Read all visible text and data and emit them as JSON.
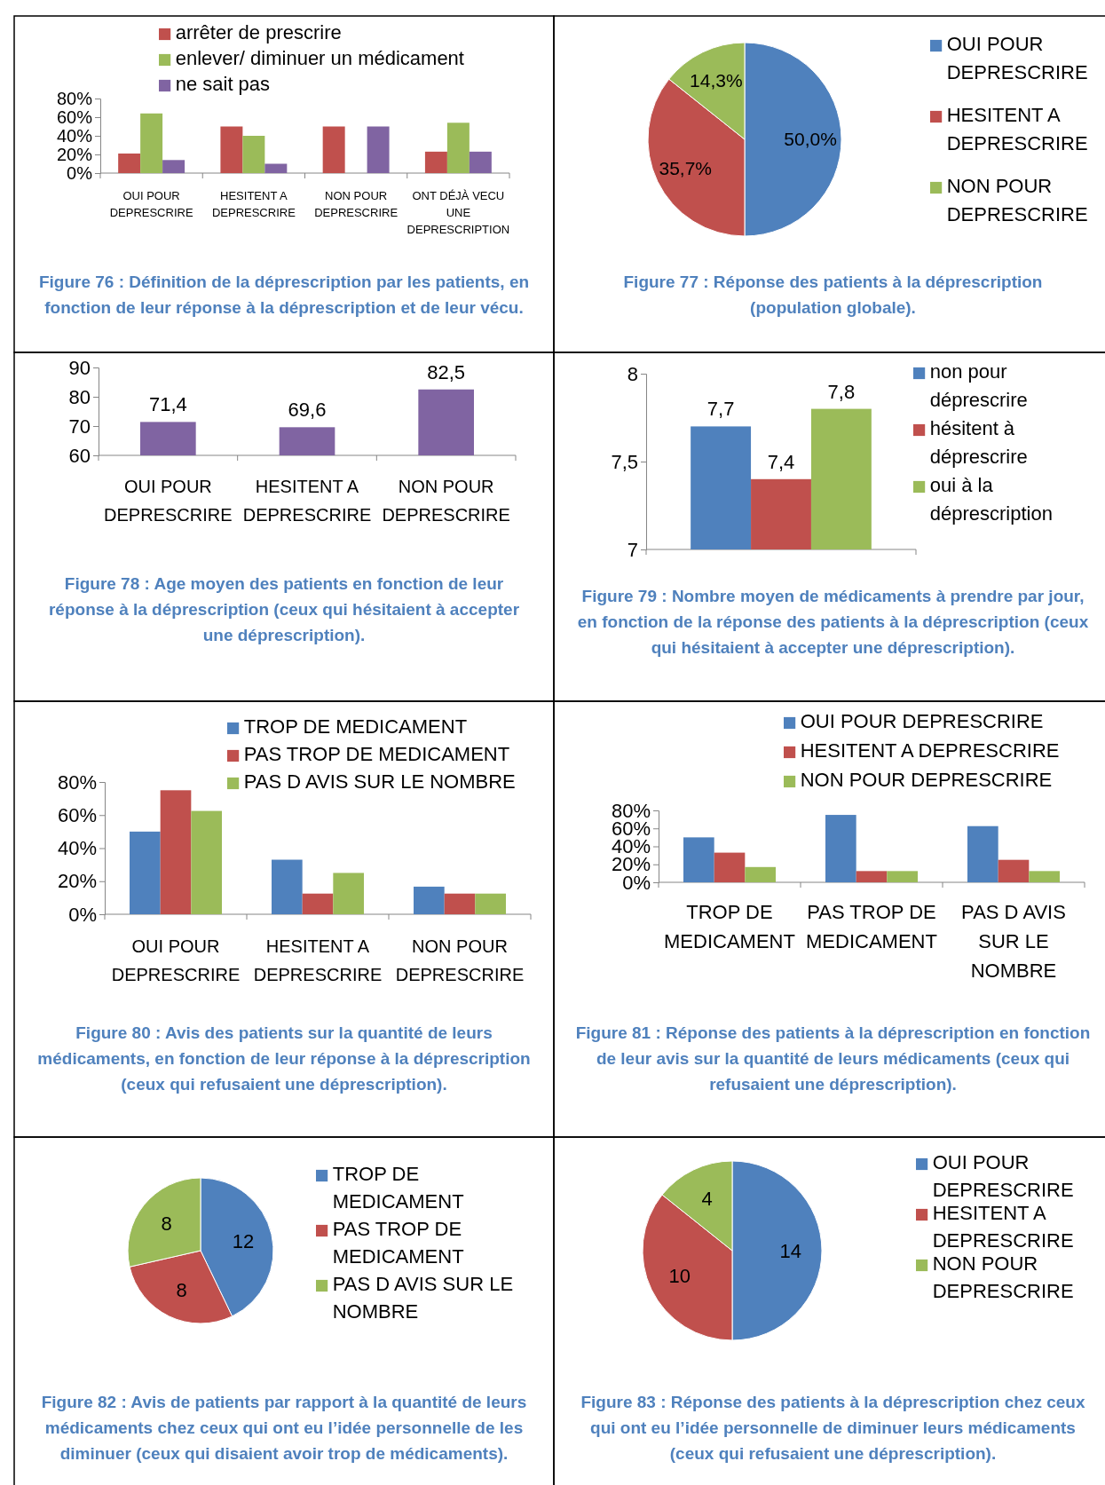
{
  "chart_data": [
    {
      "type": "bar",
      "title": "Figure 76 : Définition de la déprescription par les patients, en fonction de leur réponse à la déprescription et de leur vécu.",
      "categories": [
        "OUI POUR DEPRESCRIRE",
        "HESITENT A DEPRESCRIRE",
        "NON POUR DEPRESCRIRE",
        "ONT DÉJÀ VECU UNE DEPRESCRIPTION"
      ],
      "series": [
        {
          "name": "arrêter de prescrire",
          "color": "#c0504d",
          "values": [
            21,
            50,
            50,
            23
          ]
        },
        {
          "name": "enlever/ diminuer un médicament",
          "color": "#9bbb59",
          "values": [
            64,
            40,
            0,
            54
          ]
        },
        {
          "name": "ne sait pas",
          "color": "#8064a2",
          "values": [
            14,
            10,
            50,
            23
          ]
        }
      ],
      "ylim": [
        0,
        80
      ],
      "yticks": [
        {
          "value": 0,
          "label": "0%"
        },
        {
          "value": 20,
          "label": "20%"
        },
        {
          "value": 40,
          "label": "40%"
        },
        {
          "value": 60,
          "label": "60%"
        },
        {
          "value": 80,
          "label": "80%"
        }
      ],
      "legend": "top"
    },
    {
      "type": "pie",
      "title": "Figure 77 : Réponse des patients à la déprescription (population globale).",
      "categories": [
        "OUI POUR DEPRESCRIRE",
        "HESITENT A DEPRESCRIRE",
        "NON POUR DEPRESCRIRE"
      ],
      "values": [
        50,
        35.7,
        14.3
      ],
      "colors": [
        "#4f81bd",
        "#c0504d",
        "#9bbb59"
      ],
      "value_labels": [
        "50,0%",
        "35,7%",
        "14,3%"
      ],
      "legend": "right"
    },
    {
      "type": "bar",
      "title": "Figure 78 : Age moyen des patients en fonction de leur réponse à la déprescription (ceux qui hésitaient à accepter une déprescription).",
      "categories": [
        "OUI POUR DEPRESCRIRE",
        "HESITENT A DEPRESCRIRE",
        "NON POUR DEPRESCRIRE"
      ],
      "values": [
        71.4,
        69.6,
        82.5
      ],
      "color": "#8064a2",
      "value_labels": [
        "71,4",
        "69,6",
        "82,5"
      ],
      "ylim": [
        60,
        90
      ],
      "yticks": [
        60,
        70,
        80,
        90
      ]
    },
    {
      "type": "bar",
      "title": "Figure 79 : Nombre moyen de médicaments à prendre par jour, en fonction de la réponse des patients à la déprescription (ceux qui hésitaient à accepter une déprescription).",
      "categories": [
        null
      ],
      "series": [
        {
          "name": "non pour déprescrire",
          "color": "#4f81bd",
          "values": [
            7.7
          ],
          "value_labels": [
            "7,7"
          ]
        },
        {
          "name": "hésitent à déprescrire",
          "color": "#c0504d",
          "values": [
            7.4
          ],
          "value_labels": [
            "7,4"
          ]
        },
        {
          "name": "oui à la déprescription",
          "color": "#9bbb59",
          "values": [
            7.8
          ],
          "value_labels": [
            "7,8"
          ]
        }
      ],
      "ylim": [
        7,
        8
      ],
      "yticks": [
        7,
        {
          "value": 7.5,
          "label": "7,5"
        },
        8
      ],
      "legend": "right"
    },
    {
      "type": "bar",
      "title": "Figure 80 : Avis des patients sur la quantité de leurs médicaments, en fonction de leur réponse à la déprescription (ceux qui refusaient une déprescription).",
      "categories": [
        "OUI POUR DEPRESCRIRE",
        "HESITENT A DEPRESCRIRE",
        "NON POUR DEPRESCRIRE"
      ],
      "series": [
        {
          "name": "TROP DE MEDICAMENT",
          "color": "#4f81bd",
          "values": [
            50,
            33,
            16.7
          ]
        },
        {
          "name": "PAS TROP DE MEDICAMENT",
          "color": "#c0504d",
          "values": [
            75,
            12.5,
            12.5
          ]
        },
        {
          "name": "PAS D AVIS SUR LE NOMBRE",
          "color": "#9bbb59",
          "values": [
            62.5,
            25,
            12.5
          ]
        }
      ],
      "ylim": [
        0,
        80
      ],
      "yticks": [
        {
          "value": 0,
          "label": "0%"
        },
        {
          "value": 20,
          "label": "20%"
        },
        {
          "value": 40,
          "label": "40%"
        },
        {
          "value": 60,
          "label": "60%"
        },
        {
          "value": 80,
          "label": "80%"
        }
      ],
      "legend": "top right"
    },
    {
      "type": "bar",
      "title": "Figure 81 : Réponse des patients à la déprescription en fonction de leur avis sur la quantité de leurs médicaments (ceux qui refusaient une déprescription).",
      "categories": [
        "TROP DE MEDICAMENT",
        "PAS TROP DE MEDICAMENT",
        "PAS D AVIS SUR LE NOMBRE"
      ],
      "series": [
        {
          "name": "OUI POUR DEPRESCRIRE",
          "color": "#4f81bd",
          "values": [
            50,
            75,
            62.5
          ]
        },
        {
          "name": "HESITENT A DEPRESCRIRE",
          "color": "#c0504d",
          "values": [
            33,
            12.5,
            25
          ]
        },
        {
          "name": "NON POUR DEPRESCRIRE",
          "color": "#9bbb59",
          "values": [
            17,
            12.5,
            12.5
          ]
        }
      ],
      "ylim": [
        0,
        80
      ],
      "yticks": [
        {
          "value": 0,
          "label": "0%"
        },
        {
          "value": 20,
          "label": "20%"
        },
        {
          "value": 40,
          "label": "40%"
        },
        {
          "value": 60,
          "label": "60%"
        },
        {
          "value": 80,
          "label": "80%"
        }
      ],
      "legend": "top"
    },
    {
      "type": "pie",
      "title": "Figure 82 : Avis de patients par rapport à la quantité de leurs médicaments chez ceux qui ont eu l’idée personnelle de les diminuer (ceux qui disaient avoir trop de médicaments).",
      "categories": [
        "TROP DE MEDICAMENT",
        "PAS TROP DE MEDICAMENT",
        "PAS D AVIS SUR LE NOMBRE"
      ],
      "values": [
        12,
        8,
        8
      ],
      "colors": [
        "#4f81bd",
        "#c0504d",
        "#9bbb59"
      ],
      "data_labels": true,
      "legend": "right"
    },
    {
      "type": "pie",
      "title": "Figure 83 : Réponse des patients à la déprescription chez ceux qui ont eu l’idée personnelle de diminuer leurs médicaments (ceux qui refusaient une déprescription).",
      "categories": [
        "OUI POUR DEPRESCRIRE",
        "HESITENT A DEPRESCRIRE",
        "NON POUR DEPRESCRIRE"
      ],
      "values": [
        14,
        10,
        4
      ],
      "colors": [
        "#4f81bd",
        "#c0504d",
        "#9bbb59"
      ],
      "data_labels": true,
      "legend": "right"
    }
  ]
}
